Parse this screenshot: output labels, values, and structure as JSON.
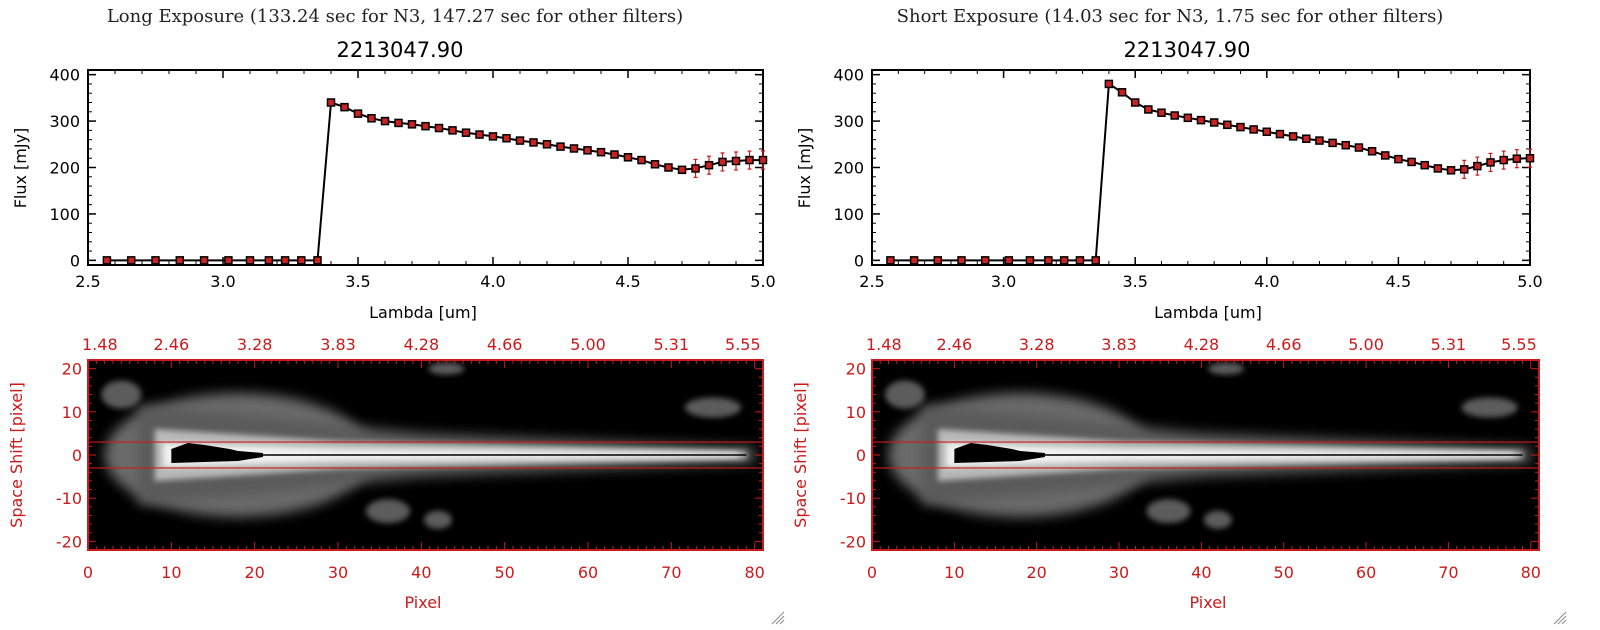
{
  "colors": {
    "axis_black": "#000000",
    "accent_red": "#cc1a1a",
    "marker_fill": "#cc2222"
  },
  "panels": [
    {
      "header": "Long Exposure (133.24 sec for N3, 147.27 sec for other filters)",
      "chart_data": {
        "type": "line",
        "title": "2213047.90",
        "xlabel": "Lambda [um]",
        "ylabel": "Flux [mJy]",
        "xlim": [
          2.5,
          5.0
        ],
        "ylim": [
          -10,
          410
        ],
        "xticks": [
          "2.5",
          "3.0",
          "3.5",
          "4.0",
          "4.5",
          "5.0"
        ],
        "yticks": [
          "0",
          "100",
          "200",
          "300",
          "400"
        ],
        "series": [
          {
            "x": [
              2.57,
              2.66,
              2.75,
              2.84,
              2.93,
              3.02,
              3.1,
              3.17,
              3.23,
              3.29,
              3.35,
              3.4,
              3.45,
              3.5,
              3.55,
              3.6,
              3.65,
              3.7,
              3.75,
              3.8,
              3.85,
              3.9,
              3.95,
              4.0,
              4.05,
              4.1,
              4.15,
              4.2,
              4.25,
              4.3,
              4.35,
              4.4,
              4.45,
              4.5,
              4.55,
              4.6,
              4.65,
              4.7,
              4.75,
              4.8,
              4.85,
              4.9,
              4.95,
              5.0
            ],
            "y": [
              0,
              0,
              0,
              0,
              0,
              0,
              0,
              0,
              0,
              0,
              0,
              340,
              330,
              316,
              306,
              300,
              296,
              293,
              289,
              285,
              280,
              275,
              271,
              267,
              263,
              258,
              254,
              250,
              245,
              241,
              237,
              233,
              228,
              222,
              216,
              207,
              200,
              195,
              198,
              205,
              212,
              214,
              216,
              216
            ]
          }
        ]
      },
      "image_chart": {
        "type": "heatmap",
        "xlabel": "Pixel",
        "ylabel": "Space Shift [pixel]",
        "xlim": [
          0,
          81
        ],
        "ylim": [
          -22,
          22
        ],
        "xticks": [
          "0",
          "10",
          "20",
          "30",
          "40",
          "50",
          "60",
          "70",
          "80"
        ],
        "yticks": [
          "20",
          "10",
          "0",
          "-10",
          "-20"
        ],
        "top_ticks": [
          "1.48",
          "2.46",
          "3.28",
          "3.83",
          "4.28",
          "4.66",
          "5.00",
          "5.31",
          "5.55"
        ],
        "aperture": [
          -3,
          3
        ]
      }
    },
    {
      "header": "Short Exposure (14.03 sec for N3, 1.75 sec for other filters)",
      "chart_data": {
        "type": "line",
        "title": "2213047.90",
        "xlabel": "Lambda [um]",
        "ylabel": "Flux [mJy]",
        "xlim": [
          2.5,
          5.0
        ],
        "ylim": [
          -10,
          410
        ],
        "xticks": [
          "2.5",
          "3.0",
          "3.5",
          "4.0",
          "4.5",
          "5.0"
        ],
        "yticks": [
          "0",
          "100",
          "200",
          "300",
          "400"
        ],
        "series": [
          {
            "x": [
              2.57,
              2.66,
              2.75,
              2.84,
              2.93,
              3.02,
              3.1,
              3.17,
              3.23,
              3.29,
              3.35,
              3.4,
              3.45,
              3.5,
              3.55,
              3.6,
              3.65,
              3.7,
              3.75,
              3.8,
              3.85,
              3.9,
              3.95,
              4.0,
              4.05,
              4.1,
              4.15,
              4.2,
              4.25,
              4.3,
              4.35,
              4.4,
              4.45,
              4.5,
              4.55,
              4.6,
              4.65,
              4.7,
              4.75,
              4.8,
              4.85,
              4.9,
              4.95,
              5.0
            ],
            "y": [
              0,
              0,
              0,
              0,
              0,
              0,
              0,
              0,
              0,
              0,
              0,
              380,
              362,
              340,
              325,
              318,
              312,
              307,
              302,
              297,
              292,
              287,
              282,
              277,
              272,
              267,
              262,
              258,
              253,
              248,
              243,
              235,
              226,
              218,
              212,
              205,
              198,
              194,
              196,
              203,
              211,
              216,
              219,
              220
            ]
          }
        ]
      },
      "image_chart": {
        "type": "heatmap",
        "xlabel": "Pixel",
        "ylabel": "Space Shift [pixel]",
        "xlim": [
          0,
          81
        ],
        "ylim": [
          -22,
          22
        ],
        "xticks": [
          "0",
          "10",
          "20",
          "30",
          "40",
          "50",
          "60",
          "70",
          "80"
        ],
        "yticks": [
          "20",
          "10",
          "0",
          "-10",
          "-20"
        ],
        "top_ticks": [
          "1.48",
          "2.46",
          "3.28",
          "3.83",
          "4.28",
          "4.66",
          "5.00",
          "5.31",
          "5.55"
        ],
        "aperture": [
          -3,
          3
        ]
      }
    }
  ]
}
